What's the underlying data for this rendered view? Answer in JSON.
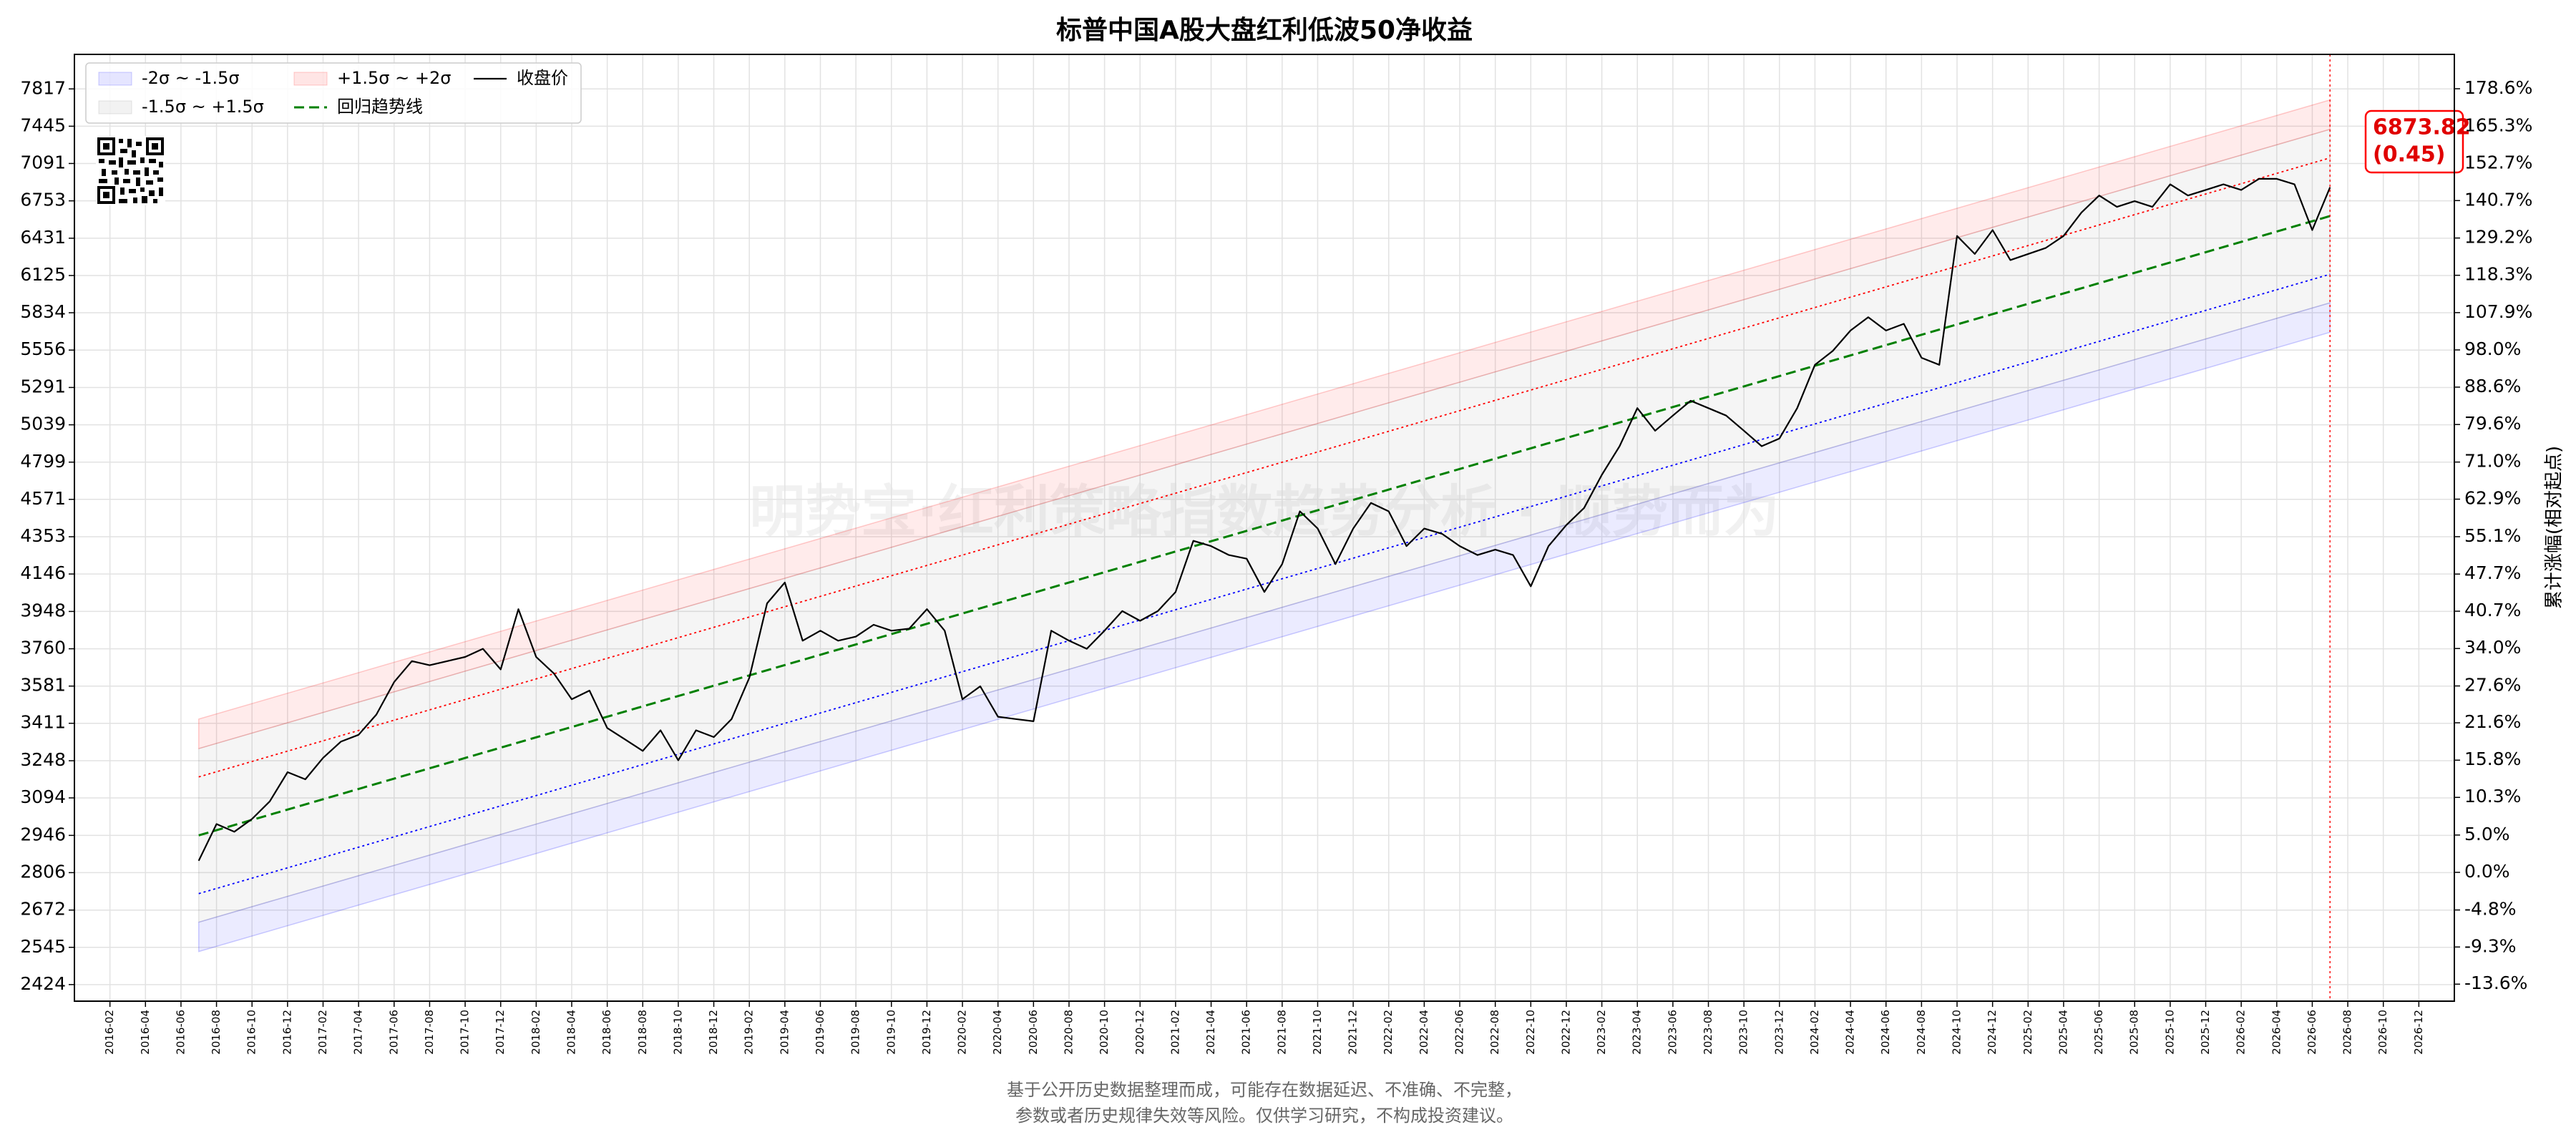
{
  "chart_data": {
    "type": "line",
    "title": "标普中国A股大盘红利低波50净收益",
    "watermark": "明势宝·红利策略指数趋势分析 · 顺势而为",
    "y2label": "累计涨幅(相对起点)",
    "annotation": "(0.45)",
    "footer": [
      "基于公开历史数据整理而成，可能存在数据延迟、不准确、不完整，",
      "参数或者历史规律失效等风险。仅供学习研究，不构成投资建议。"
    ],
    "yscale": "log",
    "y2scale": "log",
    "grid": true,
    "legend": "upper left",
    "xlim": [
      "2015-12",
      "2027-02"
    ],
    "ylim": [
      2372,
      8178
    ],
    "y2lim": [
      -15.5,
      191.4
    ],
    "yticks": [
      2424,
      2545,
      2672,
      2806,
      2946,
      3094,
      3248,
      3411,
      3581,
      3760,
      3948,
      4146,
      4353,
      4571,
      4799,
      5039,
      5291,
      5556,
      5834,
      6125,
      6431,
      6753,
      7091,
      7445,
      7817
    ],
    "y2ticks": [
      {
        "value": -13.6,
        "label": "-13.6%"
      },
      {
        "value": -9.3,
        "label": "-9.3%"
      },
      {
        "value": -4.8,
        "label": "-4.8%"
      },
      {
        "value": 0,
        "label": "0.0%"
      },
      {
        "value": 5,
        "label": "5.0%"
      },
      {
        "value": 10.3,
        "label": "10.3%"
      },
      {
        "value": 15.8,
        "label": "15.8%"
      },
      {
        "value": 21.6,
        "label": "21.6%"
      },
      {
        "value": 27.6,
        "label": "27.6%"
      },
      {
        "value": 34,
        "label": "34.0%"
      },
      {
        "value": 40.7,
        "label": "40.7%"
      },
      {
        "value": 47.7,
        "label": "47.7%"
      },
      {
        "value": 55.1,
        "label": "55.1%"
      },
      {
        "value": 62.9,
        "label": "62.9%"
      },
      {
        "value": 71,
        "label": "71.0%"
      },
      {
        "value": 79.6,
        "label": "79.6%"
      },
      {
        "value": 88.6,
        "label": "88.6%"
      },
      {
        "value": 98,
        "label": "98.0%"
      },
      {
        "value": 107.9,
        "label": "107.9%"
      },
      {
        "value": 118.3,
        "label": "118.3%"
      },
      {
        "value": 129.2,
        "label": "129.2%"
      },
      {
        "value": 140.7,
        "label": "140.7%"
      },
      {
        "value": 152.7,
        "label": "152.7%"
      },
      {
        "value": 165.3,
        "label": "165.3%"
      },
      {
        "value": 178.6,
        "label": "178.6%"
      }
    ],
    "xticks": [
      "2016-02",
      "2016-04",
      "2016-06",
      "2016-08",
      "2016-10",
      "2016-12",
      "2017-02",
      "2017-04",
      "2017-06",
      "2017-08",
      "2017-10",
      "2017-12",
      "2018-02",
      "2018-04",
      "2018-06",
      "2018-08",
      "2018-10",
      "2018-12",
      "2019-02",
      "2019-04",
      "2019-06",
      "2019-08",
      "2019-10",
      "2019-12",
      "2020-02",
      "2020-04",
      "2020-06",
      "2020-08",
      "2020-10",
      "2020-12",
      "2021-02",
      "2021-04",
      "2021-06",
      "2021-08",
      "2021-10",
      "2021-12",
      "2022-02",
      "2022-04",
      "2022-06",
      "2022-08",
      "2022-10",
      "2022-12",
      "2023-02",
      "2023-04",
      "2023-06",
      "2023-08",
      "2023-10",
      "2023-12",
      "2024-02",
      "2024-04",
      "2024-06",
      "2024-08",
      "2024-10",
      "2024-12",
      "2025-02",
      "2025-04",
      "2025-06",
      "2025-08",
      "2025-10",
      "2025-12",
      "2026-02",
      "2026-04",
      "2026-06",
      "2026-08",
      "2026-10",
      "2026-12"
    ],
    "band_x": [
      "2016-07",
      "2026-07"
    ],
    "bands": [
      {
        "name": "-2σ ~ -1.5σ",
        "color": "#0000ff",
        "lower": [
          2531,
          5687
        ],
        "upper": [
          2630,
          5910
        ]
      },
      {
        "name": "-1.5σ ~ +1.5σ",
        "color": "#808080",
        "lower": [
          2630,
          5910
        ],
        "upper": [
          3300,
          7415
        ]
      },
      {
        "name": "+1.5σ ~ +2σ",
        "color": "#ff0000",
        "lower": [
          3300,
          7415
        ],
        "upper": [
          3430,
          7705
        ]
      }
    ],
    "lines": [
      {
        "name": "回归趋势线",
        "color": "#008000",
        "style": "dashed",
        "values": [
          2946,
          6620
        ]
      },
      {
        "color": "#ff0000",
        "style": "dotted",
        "values": [
          3180,
          7143
        ]
      },
      {
        "color": "#0000ff",
        "style": "dotted",
        "values": [
          2730,
          6135
        ]
      }
    ],
    "x": [
      "2016-07",
      "2016-08",
      "2016-09",
      "2016-10",
      "2016-11",
      "2016-12",
      "2017-01",
      "2017-02",
      "2017-03",
      "2017-04",
      "2017-05",
      "2017-06",
      "2017-07",
      "2017-08",
      "2017-09",
      "2017-10",
      "2017-11",
      "2017-12",
      "2018-01",
      "2018-02",
      "2018-03",
      "2018-04",
      "2018-05",
      "2018-06",
      "2018-07",
      "2018-08",
      "2018-09",
      "2018-10",
      "2018-11",
      "2018-12",
      "2019-01",
      "2019-02",
      "2019-03",
      "2019-04",
      "2019-05",
      "2019-06",
      "2019-07",
      "2019-08",
      "2019-09",
      "2019-10",
      "2019-11",
      "2019-12",
      "2020-01",
      "2020-02",
      "2020-03",
      "2020-04",
      "2020-05",
      "2020-06",
      "2020-07",
      "2020-08",
      "2020-09",
      "2020-10",
      "2020-11",
      "2020-12",
      "2021-01",
      "2021-02",
      "2021-03",
      "2021-04",
      "2021-05",
      "2021-06",
      "2021-07",
      "2021-08",
      "2021-09",
      "2021-10",
      "2021-11",
      "2021-12",
      "2022-01",
      "2022-02",
      "2022-03",
      "2022-04",
      "2022-05",
      "2022-06",
      "2022-07",
      "2022-08",
      "2022-09",
      "2022-10",
      "2022-11",
      "2022-12",
      "2023-01",
      "2023-02",
      "2023-03",
      "2023-04",
      "2023-05",
      "2023-06",
      "2023-07",
      "2023-08",
      "2023-09",
      "2023-10",
      "2023-11",
      "2023-12",
      "2024-01",
      "2024-02",
      "2024-03",
      "2024-04",
      "2024-05",
      "2024-06",
      "2024-07",
      "2024-08",
      "2024-09",
      "2024-10",
      "2024-11",
      "2024-12",
      "2025-01",
      "2025-02",
      "2025-03",
      "2025-04",
      "2025-05",
      "2025-06",
      "2025-07",
      "2025-08",
      "2025-09",
      "2025-10",
      "2025-11",
      "2025-12",
      "2026-01",
      "2026-02",
      "2026-03",
      "2026-04",
      "2026-05",
      "2026-06",
      "2026-07"
    ],
    "series": [
      {
        "name": "收盘价",
        "color": "#000000",
        "values": [
          2850,
          2990,
          2960,
          3010,
          3080,
          3200,
          3170,
          3260,
          3330,
          3360,
          3450,
          3600,
          3700,
          3680,
          3700,
          3720,
          3760,
          3660,
          3960,
          3720,
          3640,
          3520,
          3560,
          3390,
          3340,
          3290,
          3380,
          3250,
          3380,
          3350,
          3430,
          3620,
          3990,
          4100,
          3800,
          3850,
          3800,
          3820,
          3880,
          3850,
          3860,
          3960,
          3850,
          3520,
          3580,
          3440,
          3430,
          3420,
          3850,
          3800,
          3760,
          3850,
          3950,
          3900,
          3950,
          4050,
          4330,
          4300,
          4250,
          4230,
          4050,
          4200,
          4500,
          4400,
          4200,
          4400,
          4550,
          4500,
          4300,
          4400,
          4370,
          4300,
          4250,
          4280,
          4250,
          4080,
          4300,
          4420,
          4520,
          4720,
          4900,
          5150,
          5000,
          5100,
          5200,
          5150,
          5100,
          5000,
          4900,
          4950,
          5150,
          5450,
          5550,
          5700,
          5800,
          5700,
          5750,
          5500,
          5450,
          6450,
          6300,
          6500,
          6250,
          6300,
          6350,
          6450,
          6650,
          6800,
          6700,
          6750,
          6700,
          6900,
          6800,
          6850,
          6900,
          6850,
          6950,
          6950,
          6900,
          6500,
          6873.82
        ]
      }
    ]
  }
}
